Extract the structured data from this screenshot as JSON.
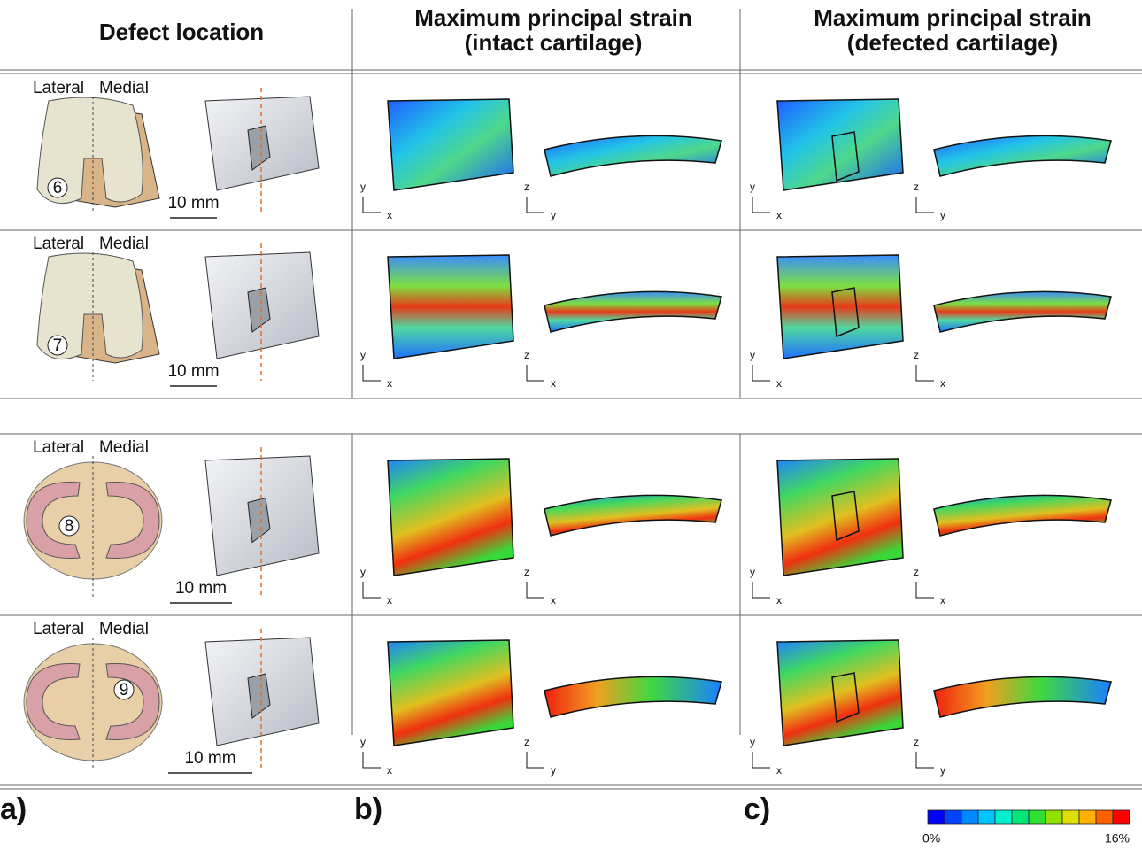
{
  "header": {
    "defect_location": "Defect location",
    "intact": [
      "Maximum principal strain",
      "(intact cartilage)"
    ],
    "defected": [
      "Maximum principal strain",
      "(defected cartilage)"
    ]
  },
  "rows": [
    {
      "lateral": "Lateral",
      "medial": "Medial",
      "defect": 6,
      "scale": "10 mm",
      "intact_axes": [
        "y",
        "x",
        "z",
        "y"
      ],
      "defected_axes": [
        "y",
        "x",
        "z",
        "y"
      ]
    },
    {
      "lateral": "Lateral",
      "medial": "Medial",
      "defect": 7,
      "scale": "10 mm",
      "intact_axes": [
        "y",
        "x",
        "z",
        "x"
      ],
      "defected_axes": [
        "y",
        "x",
        "z",
        "x"
      ]
    },
    {
      "lateral": "Lateral",
      "medial": "Medial",
      "defect": 8,
      "scale": "10 mm",
      "intact_axes": [
        "y",
        "x",
        "z",
        "x"
      ],
      "defected_axes": [
        "y",
        "x",
        "z",
        "x"
      ]
    },
    {
      "lateral": "Lateral",
      "medial": "Medial",
      "defect": 9,
      "scale": "10 mm",
      "intact_axes": [
        "y",
        "x",
        "z",
        "y"
      ],
      "defected_axes": [
        "y",
        "x",
        "z",
        "y"
      ]
    }
  ],
  "panels": [
    "a)",
    "b)",
    "c)"
  ],
  "colorbar": {
    "min": "0%",
    "max": "16%",
    "colors": [
      "#0000ff",
      "#0044ff",
      "#0088ff",
      "#00c4ff",
      "#00f0d0",
      "#00e878",
      "#30e030",
      "#90e000",
      "#e0e000",
      "#ffb000",
      "#ff6000",
      "#ff0000"
    ]
  }
}
